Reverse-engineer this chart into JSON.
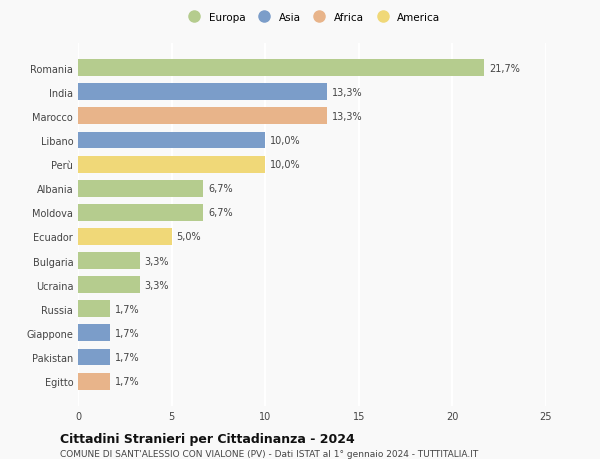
{
  "countries": [
    "Romania",
    "India",
    "Marocco",
    "Libano",
    "Perù",
    "Albania",
    "Moldova",
    "Ecuador",
    "Bulgaria",
    "Ucraina",
    "Russia",
    "Giappone",
    "Pakistan",
    "Egitto"
  ],
  "values": [
    21.7,
    13.3,
    13.3,
    10.0,
    10.0,
    6.7,
    6.7,
    5.0,
    3.3,
    3.3,
    1.7,
    1.7,
    1.7,
    1.7
  ],
  "labels": [
    "21,7%",
    "13,3%",
    "13,3%",
    "10,0%",
    "10,0%",
    "6,7%",
    "6,7%",
    "5,0%",
    "3,3%",
    "3,3%",
    "1,7%",
    "1,7%",
    "1,7%",
    "1,7%"
  ],
  "continents": [
    "Europa",
    "Asia",
    "Africa",
    "Asia",
    "America",
    "Europa",
    "Europa",
    "America",
    "Europa",
    "Europa",
    "Europa",
    "Asia",
    "Asia",
    "Africa"
  ],
  "continent_colors": {
    "Europa": "#b5cc8e",
    "Asia": "#7b9dc9",
    "Africa": "#e8b48a",
    "America": "#f0d878"
  },
  "legend_order": [
    "Europa",
    "Asia",
    "Africa",
    "America"
  ],
  "xlim": [
    0,
    25
  ],
  "xticks": [
    0,
    5,
    10,
    15,
    20,
    25
  ],
  "title": "Cittadini Stranieri per Cittadinanza - 2024",
  "subtitle": "COMUNE DI SANT'ALESSIO CON VIALONE (PV) - Dati ISTAT al 1° gennaio 2024 - TUTTITALIA.IT",
  "bg_color": "#f9f9f9",
  "grid_color": "#ffffff",
  "bar_height": 0.7,
  "label_fontsize": 7.0,
  "ytick_fontsize": 7.0,
  "xtick_fontsize": 7.0,
  "title_fontsize": 9.0,
  "subtitle_fontsize": 6.5,
  "legend_fontsize": 7.5
}
